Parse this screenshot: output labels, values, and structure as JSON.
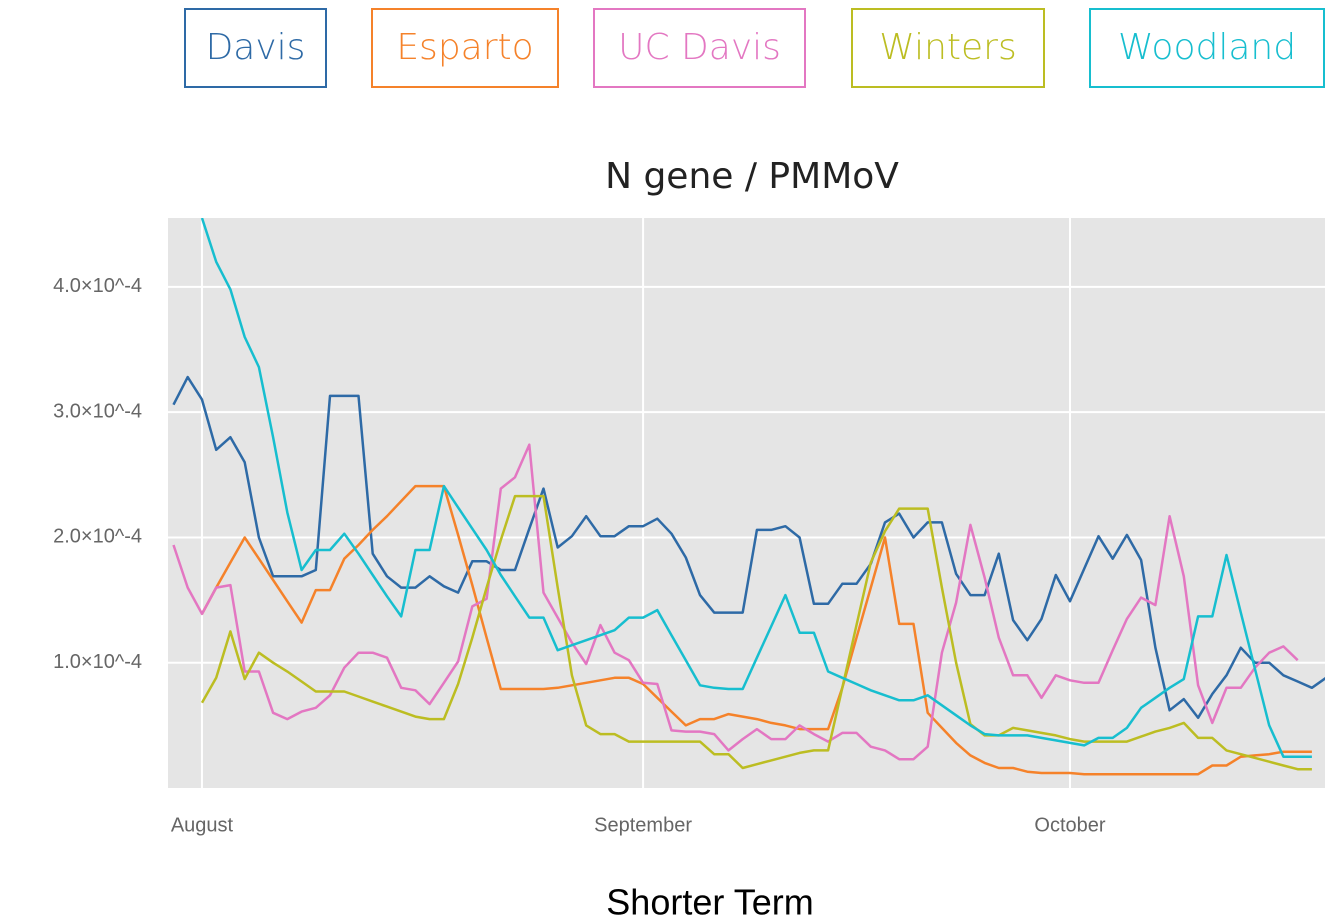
{
  "chart_data": {
    "type": "line",
    "title": "N gene / PMMoV",
    "caption": "Shorter Term",
    "categories": [
      null,
      null,
      "August",
      null,
      null,
      null,
      null,
      null,
      null,
      null,
      null,
      null,
      null,
      null,
      null,
      null,
      null,
      null,
      null,
      null,
      null,
      null,
      null,
      null,
      null,
      null,
      null,
      null,
      null,
      null,
      null,
      null,
      null,
      "September",
      null,
      null,
      null,
      null,
      null,
      null,
      null,
      null,
      null,
      null,
      null,
      null,
      null,
      null,
      null,
      null,
      null,
      null,
      null,
      null,
      null,
      null,
      null,
      null,
      null,
      null,
      null,
      null,
      null,
      "October",
      null,
      null,
      null,
      null,
      null,
      null,
      null,
      null,
      null,
      null,
      null,
      null,
      null,
      null,
      null,
      null,
      null,
      null
    ],
    "ylim": [
      0,
      0.000455
    ],
    "yticks": [
      {
        "value": 0.0001,
        "label": "1.0×10^-4"
      },
      {
        "value": 0.0002,
        "label": "2.0×10^-4"
      },
      {
        "value": 0.0003,
        "label": "3.0×10^-4"
      },
      {
        "value": 0.0004,
        "label": "4.0×10^-4"
      }
    ],
    "grid": true,
    "series": [
      {
        "name": "Davis",
        "color": "#2e6aa6",
        "values": [
          0.000306,
          0.000328,
          0.00031,
          0.00027,
          0.00028,
          0.00026,
          0.0002,
          0.000169,
          0.000169,
          0.000169,
          0.000174,
          0.000313,
          0.000313,
          0.000313,
          0.000187,
          0.000169,
          0.00016,
          0.00016,
          0.000169,
          0.000161,
          0.000156,
          0.000181,
          0.000181,
          0.000174,
          0.000174,
          0.000207,
          0.000239,
          0.000192,
          0.000201,
          0.000217,
          0.000201,
          0.000201,
          0.000209,
          0.000209,
          0.000215,
          0.000203,
          0.000184,
          0.000154,
          0.00014,
          0.00014,
          0.00014,
          0.000206,
          0.000206,
          0.000209,
          0.0002,
          0.000147,
          0.000147,
          0.000163,
          0.000163,
          0.000179,
          0.000212,
          0.000219,
          0.0002,
          0.000212,
          0.000212,
          0.000171,
          0.000154,
          0.000154,
          0.000187,
          0.000134,
          0.000118,
          0.000135,
          0.00017,
          0.000149,
          0.000175,
          0.000201,
          0.000183,
          0.000202,
          0.000182,
          0.000112,
          6.2e-05,
          7.1e-05,
          5.6e-05,
          7.5e-05,
          9e-05,
          0.000112,
          0.0001,
          0.0001,
          9e-05,
          8.5e-05,
          8e-05,
          8.8e-05
        ]
      },
      {
        "name": "Esparto",
        "color": "#f5822a",
        "values": [
          null,
          null,
          0.000139,
          0.00016,
          0.00018,
          0.0002,
          0.000183,
          0.000166,
          0.000149,
          0.000132,
          0.000158,
          0.000158,
          0.000183,
          0.000194,
          0.000206,
          0.000217,
          0.000229,
          0.000241,
          0.000241,
          0.000241,
          0.000202,
          0.000162,
          0.00012,
          7.9e-05,
          7.9e-05,
          7.9e-05,
          7.9e-05,
          8e-05,
          8.2e-05,
          8.4e-05,
          8.6e-05,
          8.8e-05,
          8.8e-05,
          8.3e-05,
          7.2e-05,
          6.1e-05,
          5e-05,
          5.5e-05,
          5.5e-05,
          5.9e-05,
          5.7e-05,
          5.5e-05,
          5.2e-05,
          5e-05,
          4.7e-05,
          4.7e-05,
          4.7e-05,
          8e-05,
          0.00012,
          0.00016,
          0.0002,
          0.000131,
          0.000131,
          6e-05,
          4.8e-05,
          3.6e-05,
          2.6e-05,
          2e-05,
          1.6e-05,
          1.6e-05,
          1.3e-05,
          1.2e-05,
          1.2e-05,
          1.2e-05,
          1.1e-05,
          1.1e-05,
          1.1e-05,
          1.1e-05,
          1.1e-05,
          1.1e-05,
          1.1e-05,
          1.1e-05,
          1.1e-05,
          1.8e-05,
          1.8e-05,
          2.5e-05,
          2.6e-05,
          2.7e-05,
          2.9e-05,
          2.9e-05,
          2.9e-05,
          null
        ]
      },
      {
        "name": "UC Davis",
        "color": "#e377c2",
        "values": [
          0.000194,
          0.00016,
          0.000139,
          0.00016,
          0.000162,
          9.3e-05,
          9.3e-05,
          6e-05,
          5.5e-05,
          6.1e-05,
          6.4e-05,
          7.4e-05,
          9.6e-05,
          0.000108,
          0.000108,
          0.000104,
          8e-05,
          7.8e-05,
          6.7e-05,
          8.4e-05,
          0.000101,
          0.000145,
          0.000151,
          0.000239,
          0.000248,
          0.000274,
          0.000156,
          0.000136,
          0.000116,
          9.9e-05,
          0.00013,
          0.000108,
          0.000102,
          8.4e-05,
          8.3e-05,
          4.6e-05,
          4.5e-05,
          4.5e-05,
          4.3e-05,
          3e-05,
          3.9e-05,
          4.7e-05,
          3.9e-05,
          3.9e-05,
          5e-05,
          4.3e-05,
          3.7e-05,
          4.4e-05,
          4.4e-05,
          3.3e-05,
          3e-05,
          2.3e-05,
          2.3e-05,
          3.3e-05,
          0.000108,
          0.000148,
          0.00021,
          0.000168,
          0.00012,
          9e-05,
          9e-05,
          7.2e-05,
          9e-05,
          8.6e-05,
          8.4e-05,
          8.4e-05,
          0.00011,
          0.000135,
          0.000152,
          0.000146,
          0.000217,
          0.000169,
          8.2e-05,
          5.2e-05,
          8e-05,
          8e-05,
          9.6e-05,
          0.000108,
          0.000113,
          0.000102,
          null,
          null
        ]
      },
      {
        "name": "Winters",
        "color": "#bcbd22",
        "values": [
          null,
          null,
          6.8e-05,
          8.8e-05,
          0.000125,
          8.7e-05,
          0.000108,
          0.0001,
          9.3e-05,
          8.5e-05,
          7.7e-05,
          7.7e-05,
          7.7e-05,
          7.3e-05,
          6.9e-05,
          6.5e-05,
          6.1e-05,
          5.7e-05,
          5.5e-05,
          5.5e-05,
          8.3e-05,
          0.00012,
          0.00016,
          0.000198,
          0.000233,
          0.000233,
          0.000233,
          0.00016,
          9e-05,
          5e-05,
          4.3e-05,
          4.3e-05,
          3.7e-05,
          3.7e-05,
          3.7e-05,
          3.7e-05,
          3.7e-05,
          3.7e-05,
          2.7e-05,
          2.7e-05,
          1.6e-05,
          1.9e-05,
          2.2e-05,
          2.5e-05,
          2.8e-05,
          3e-05,
          3e-05,
          8e-05,
          0.00013,
          0.00018,
          0.000205,
          0.000223,
          0.000223,
          0.000223,
          0.00016,
          0.0001,
          5.1e-05,
          4.2e-05,
          4.2e-05,
          4.8e-05,
          4.6e-05,
          4.4e-05,
          4.2e-05,
          3.9e-05,
          3.7e-05,
          3.7e-05,
          3.7e-05,
          3.7e-05,
          4.1e-05,
          4.5e-05,
          4.8e-05,
          5.2e-05,
          4e-05,
          4e-05,
          3e-05,
          2.7e-05,
          2.4e-05,
          2.1e-05,
          1.8e-05,
          1.5e-05,
          1.5e-05,
          null
        ]
      },
      {
        "name": "Woodland",
        "color": "#17becf",
        "values": [
          null,
          null,
          0.000455,
          0.00042,
          0.000398,
          0.00036,
          0.000336,
          0.00028,
          0.00022,
          0.000174,
          0.00019,
          0.00019,
          0.000203,
          0.000187,
          0.00017,
          0.000153,
          0.000137,
          0.00019,
          0.00019,
          0.000241,
          0.000224,
          0.000207,
          0.00019,
          0.00017,
          0.000153,
          0.000136,
          0.000136,
          0.00011,
          0.000114,
          0.000118,
          0.000122,
          0.000126,
          0.000136,
          0.000136,
          0.000142,
          0.000122,
          0.000102,
          8.2e-05,
          8e-05,
          7.9e-05,
          7.9e-05,
          0.000104,
          0.000129,
          0.000154,
          0.000124,
          0.000124,
          9.3e-05,
          8.8e-05,
          8.3e-05,
          7.8e-05,
          7.4e-05,
          7e-05,
          7e-05,
          7.4e-05,
          6.6e-05,
          5.8e-05,
          5e-05,
          4.3e-05,
          4.2e-05,
          4.2e-05,
          4.2e-05,
          4e-05,
          3.8e-05,
          3.6e-05,
          3.4e-05,
          4e-05,
          4e-05,
          4.8e-05,
          6.4e-05,
          7.2e-05,
          8e-05,
          8.7e-05,
          0.000137,
          0.000137,
          0.000186,
          0.00014,
          9.5e-05,
          5e-05,
          2.5e-05,
          2.5e-05,
          2.5e-05,
          null
        ]
      }
    ]
  }
}
